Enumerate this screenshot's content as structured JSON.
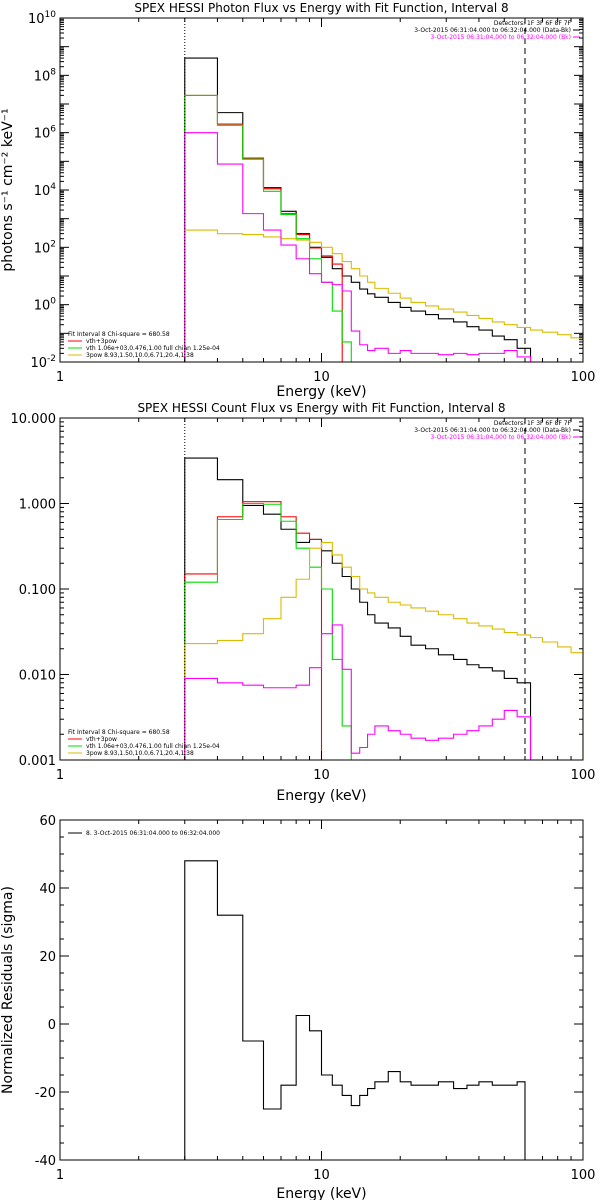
{
  "chart_data": [
    {
      "type": "line",
      "title": "SPEX HESSI Photon Flux vs Energy with Fit Function, Interval 8",
      "xlabel": "Energy (keV)",
      "ylabel": "photons s⁻¹ cm⁻² keV⁻¹",
      "x_scale": "log",
      "y_scale": "log",
      "xlim": [
        1,
        100
      ],
      "ylim": [
        0.01,
        10000000000.0
      ],
      "x_ticks": [
        {
          "v": 1,
          "label": "1"
        },
        {
          "v": 10,
          "label": "10"
        },
        {
          "v": 100,
          "label": "100"
        }
      ],
      "y_ticks": [
        {
          "v": 0.01,
          "b": "10",
          "e": "-2"
        },
        {
          "v": 1,
          "b": "10",
          "e": "0"
        },
        {
          "v": 100,
          "b": "10",
          "e": "2"
        },
        {
          "v": 10000,
          "b": "10",
          "e": "4"
        },
        {
          "v": 1000000,
          "b": "10",
          "e": "6"
        },
        {
          "v": 100000000,
          "b": "10",
          "e": "8"
        },
        {
          "v": 10000000000,
          "b": "10",
          "e": "10"
        }
      ],
      "header_lines": [
        "Detectors: 1F 3F 6F 8F 7F",
        "3-Oct-2015 06:31:04.000 to 06:32:04.000 (Data-Bk)",
        "3-Oct-2015 06:31:04.000 to 06:32:04.000 (Bk)"
      ],
      "header_colors": [
        "#000000",
        "#000000",
        "#ff00ff"
      ],
      "fit_lines": [
        "Fit Interval 8   Chi-square = 680.58",
        "vth+3pow",
        "vth 1.06e+03,0.476,1.00  full chian 1.25e-04",
        "3pow 8.93,1.50,10.0,6.71,20.4,1.38"
      ],
      "fit_colors": [
        "#000000",
        "#ff0000",
        "#00dd00",
        "#ddbb00"
      ],
      "energy_edges": [
        3,
        4,
        5,
        6,
        7,
        8,
        9,
        10,
        11,
        12,
        13,
        14,
        15,
        16,
        18,
        20,
        22,
        25,
        28,
        32,
        36,
        40,
        45,
        50,
        56,
        63,
        70,
        80,
        90,
        100
      ],
      "series": [
        {
          "name": "Data-Bk",
          "color": "#000000",
          "values": [
            400000000.0,
            5000000.0,
            120000.0,
            12000.0,
            1800,
            300,
            100,
            45,
            18,
            10,
            6,
            3.5,
            2.4,
            1.8,
            1.2,
            0.8,
            0.6,
            0.45,
            0.32,
            0.25,
            0.17,
            0.13,
            0.08,
            0.06,
            0.03
          ]
        },
        {
          "name": "vth+3pow",
          "color": "#ff0000",
          "values": [
            20000000.0,
            2000000.0,
            130000.0,
            11000.0,
            1500,
            280,
            95,
            50,
            26
          ]
        },
        {
          "name": "vth",
          "color": "#00dd00",
          "values": [
            20000000.0,
            1800000.0,
            120000.0,
            9000.0,
            1400,
            200,
            40,
            6,
            0.6,
            0.05,
            0.01
          ]
        },
        {
          "name": "3pow",
          "color": "#ddbb00",
          "values": [
            400,
            300,
            280,
            230,
            200,
            180,
            150,
            100,
            60,
            32,
            18,
            10,
            6,
            3.7,
            2.5,
            1.7,
            1.2,
            0.9,
            0.7,
            0.55,
            0.42,
            0.33,
            0.25,
            0.2,
            0.16,
            0.13,
            0.11,
            0.09,
            0.07
          ]
        },
        {
          "name": "Bk",
          "color": "#ff00ff",
          "values": [
            1000000.0,
            80000.0,
            1500.0,
            400,
            120,
            40,
            12,
            6,
            5,
            3,
            0.12,
            0.04,
            0.025,
            0.03,
            0.02,
            0.025,
            0.02,
            0.02,
            0.018,
            0.02,
            0.018,
            0.02,
            0.02,
            0.025,
            0.015
          ]
        }
      ],
      "vlines": [
        {
          "x": 3,
          "style": "dotted"
        },
        {
          "x": 60,
          "style": "dashed"
        }
      ]
    },
    {
      "type": "line",
      "title": "SPEX HESSI Count Flux vs Energy with Fit Function, Interval 8",
      "xlabel": "Energy (keV)",
      "ylabel": "",
      "x_scale": "log",
      "y_scale": "log",
      "xlim": [
        1,
        100
      ],
      "ylim": [
        0.001,
        10
      ],
      "x_ticks": [
        {
          "v": 1,
          "label": "1"
        },
        {
          "v": 10,
          "label": "10"
        },
        {
          "v": 100,
          "label": "100"
        }
      ],
      "y_ticks": [
        {
          "v": 0.001,
          "label": "0.001"
        },
        {
          "v": 0.01,
          "label": "0.010"
        },
        {
          "v": 0.1,
          "label": "0.100"
        },
        {
          "v": 1,
          "label": "1.000"
        },
        {
          "v": 10,
          "label": "10.000"
        }
      ],
      "header_lines": [
        "Detectors: 1F 3F 6F 8F 7F",
        "3-Oct-2015 06:31:04.000 to 06:32:04.000 (Data-Bk)",
        "3-Oct-2015 06:31:04.000 to 06:32:04.000 (Bk)"
      ],
      "header_colors": [
        "#000000",
        "#000000",
        "#ff00ff"
      ],
      "fit_lines": [
        "Fit Interval 8   Chi-square = 680.58",
        "vth+3pow",
        "vth 1.06e+03,0.476,1.00  full chian 1.25e-04",
        "3pow 8.93,1.50,10.0,6.71,20.4,1.38"
      ],
      "fit_colors": [
        "#000000",
        "#ff0000",
        "#00dd00",
        "#ddbb00"
      ],
      "energy_edges": [
        3,
        4,
        5,
        6,
        7,
        8,
        9,
        10,
        11,
        12,
        13,
        14,
        15,
        16,
        18,
        20,
        22,
        25,
        28,
        32,
        36,
        40,
        45,
        50,
        56,
        63,
        70,
        80,
        90,
        100
      ],
      "series": [
        {
          "name": "Data-Bk",
          "color": "#000000",
          "values": [
            3.4,
            1.9,
            0.95,
            0.75,
            0.5,
            0.35,
            0.38,
            0.28,
            0.2,
            0.14,
            0.1,
            0.07,
            0.05,
            0.04,
            0.035,
            0.028,
            0.022,
            0.02,
            0.017,
            0.015,
            0.013,
            0.012,
            0.011,
            0.009,
            0.008
          ]
        },
        {
          "name": "vth+3pow",
          "color": "#ff0000",
          "values": [
            0.15,
            0.7,
            1.05,
            1.05,
            0.7,
            0.45,
            0.38
          ]
        },
        {
          "name": "vth",
          "color": "#00dd00",
          "values": [
            0.12,
            0.65,
            1.0,
            0.98,
            0.62,
            0.3,
            0.18,
            0.1,
            0.015,
            0.0025,
            0.0008
          ]
        },
        {
          "name": "3pow",
          "color": "#ddbb00",
          "values": [
            0.023,
            0.025,
            0.03,
            0.045,
            0.08,
            0.13,
            0.3,
            0.35,
            0.25,
            0.18,
            0.14,
            0.1,
            0.09,
            0.08,
            0.07,
            0.065,
            0.06,
            0.055,
            0.05,
            0.045,
            0.04,
            0.037,
            0.034,
            0.031,
            0.029,
            0.027,
            0.024,
            0.021,
            0.018
          ]
        },
        {
          "name": "Bk",
          "color": "#ff00ff",
          "values": [
            0.009,
            0.008,
            0.0075,
            0.007,
            0.007,
            0.0075,
            0.012,
            0.03,
            0.038,
            0.0115,
            0.0012,
            0.0014,
            0.002,
            0.0025,
            0.0022,
            0.002,
            0.0018,
            0.0017,
            0.0018,
            0.002,
            0.0022,
            0.0025,
            0.003,
            0.0038,
            0.0032
          ]
        }
      ],
      "vlines": [
        {
          "x": 3,
          "style": "dotted"
        },
        {
          "x": 60,
          "style": "dashed"
        }
      ]
    },
    {
      "type": "line",
      "title": "",
      "xlabel": "Energy (keV)",
      "ylabel": "Normalized Residuals (sigma)",
      "x_scale": "log",
      "y_scale": "linear",
      "xlim": [
        1,
        100
      ],
      "ylim": [
        -40,
        60
      ],
      "x_ticks": [
        {
          "v": 1,
          "label": "1"
        },
        {
          "v": 10,
          "label": "10"
        },
        {
          "v": 100,
          "label": "100"
        }
      ],
      "y_ticks": [
        {
          "v": -40,
          "label": "-40"
        },
        {
          "v": -20,
          "label": "-20"
        },
        {
          "v": 0,
          "label": "0"
        },
        {
          "v": 20,
          "label": "20"
        },
        {
          "v": 40,
          "label": "40"
        },
        {
          "v": 60,
          "label": "60"
        }
      ],
      "legend": "8.  3-Oct-2015 06:31:04.000 to 06:32:04.000",
      "energy_edges": [
        3,
        4,
        5,
        6,
        7,
        8,
        9,
        10,
        11,
        12,
        13,
        14,
        15,
        16,
        18,
        20,
        22,
        25,
        28,
        32,
        36,
        40,
        45,
        50,
        56,
        60
      ],
      "series": [
        {
          "name": "",
          "color": "#000000",
          "values": [
            48,
            32,
            -5,
            -25,
            -18,
            2.5,
            -2,
            -15,
            -18,
            -21,
            -24,
            -21,
            -19,
            -17,
            -14,
            -17,
            -18,
            -18,
            -17,
            -19,
            -18,
            -17,
            -18,
            -18,
            -17
          ]
        }
      ]
    }
  ]
}
